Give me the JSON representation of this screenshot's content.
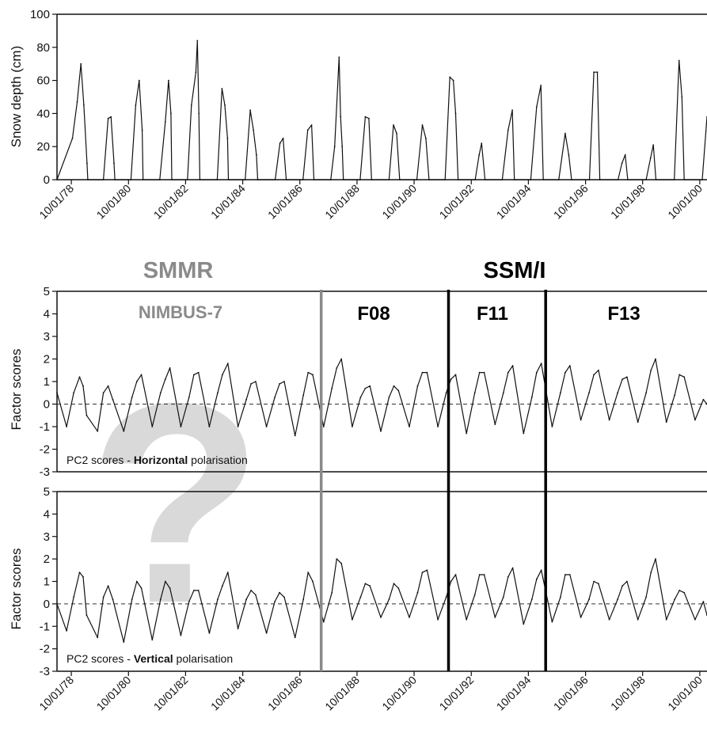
{
  "colors": {
    "line": "#111111",
    "smmr": "#8a8a8a",
    "ssmi": "#000000",
    "question_mark": "#d9d9d9"
  },
  "chart_data": [
    {
      "type": "line",
      "ylabel": "Snow depth (cm)",
      "ylim": [
        0,
        100
      ],
      "yticks": [
        0,
        20,
        40,
        60,
        80,
        100
      ],
      "x_ticks": [
        "10/01/78",
        "10/01/80",
        "10/01/82",
        "10/01/84",
        "10/01/86",
        "10/01/88",
        "10/01/90",
        "10/01/92",
        "10/01/94",
        "10/01/96",
        "10/01/98",
        "10/01/00"
      ],
      "xlim": [
        "1978-04-01",
        "2001-01-01"
      ],
      "series": [
        {
          "x": [
            "1978-04-01",
            "1978-10-15",
            "1978-12-15",
            "1979-02-01",
            "1979-03-10",
            "1979-04-20",
            "1979-04-30",
            "1979-11-15",
            "1980-01-15",
            "1980-02-20",
            "1980-03-30",
            "1980-04-10",
            "1980-11-01",
            "1981-01-01",
            "1981-02-15",
            "1981-03-25",
            "1981-04-05",
            "1981-11-05",
            "1982-01-15",
            "1982-02-25",
            "1982-03-28",
            "1982-04-08",
            "1982-10-25",
            "1982-12-15",
            "1983-02-10",
            "1983-03-01",
            "1983-03-20",
            "1983-04-01",
            "1983-11-10",
            "1984-01-10",
            "1984-02-15",
            "1984-03-20",
            "1984-04-01",
            "1984-11-01",
            "1985-01-05",
            "1985-02-15",
            "1985-03-25",
            "1985-04-10",
            "1985-11-20",
            "1986-01-20",
            "1986-03-01",
            "1986-04-10",
            "1986-11-10",
            "1987-01-10",
            "1987-03-01",
            "1987-03-30",
            "1987-11-01",
            "1987-12-20",
            "1988-02-15",
            "1988-03-05",
            "1988-03-25",
            "1988-04-10",
            "1988-11-10",
            "1989-01-15",
            "1989-03-01",
            "1989-04-05",
            "1989-11-15",
            "1990-01-10",
            "1990-02-20",
            "1990-03-30",
            "1990-11-05",
            "1991-01-15",
            "1991-02-28",
            "1991-04-10",
            "1991-11-01",
            "1992-01-01",
            "1992-02-15",
            "1992-03-15",
            "1992-04-15",
            "1992-11-20",
            "1993-01-10",
            "1993-02-10",
            "1993-03-25",
            "1993-11-01",
            "1994-01-15",
            "1994-03-10",
            "1994-04-05",
            "1994-11-01",
            "1995-01-15",
            "1995-03-10",
            "1995-04-10",
            "1995-10-25",
            "1996-01-15",
            "1996-03-01",
            "1996-04-05",
            "1996-11-20",
            "1997-01-15",
            "1997-03-01",
            "1997-04-01",
            "1997-11-20",
            "1998-01-10",
            "1998-02-20",
            "1998-03-25",
            "1998-11-15",
            "1999-01-10",
            "1999-02-15",
            "1999-03-20",
            "1999-11-10",
            "2000-01-10",
            "2000-02-15",
            "2000-03-15",
            "2000-11-01",
            "2001-01-01"
          ],
          "y": [
            0,
            25,
            47,
            70,
            45,
            10,
            0,
            0,
            37,
            38,
            10,
            0,
            0,
            45,
            60,
            30,
            0,
            0,
            35,
            60,
            40,
            0,
            0,
            45,
            65,
            84,
            40,
            0,
            0,
            55,
            45,
            25,
            0,
            0,
            42,
            30,
            15,
            0,
            0,
            22,
            25,
            0,
            0,
            30,
            33,
            0,
            0,
            20,
            74,
            38,
            20,
            0,
            0,
            38,
            37,
            0,
            0,
            33,
            28,
            0,
            0,
            33,
            25,
            0,
            0,
            62,
            60,
            40,
            0,
            0,
            15,
            22,
            0,
            0,
            30,
            42,
            0,
            0,
            44,
            57,
            0,
            0,
            28,
            15,
            0,
            0,
            65,
            65,
            0,
            0,
            10,
            15,
            0,
            0,
            13,
            21,
            0,
            0,
            72,
            50,
            0,
            0,
            38
          ]
        }
      ]
    },
    {
      "type": "line",
      "ylabel": "Factor scores",
      "annotation_prefix": "PC2 scores - ",
      "annotation_bold": "Horizontal",
      "annotation_suffix": " polarisation",
      "ylim": [
        -3,
        5
      ],
      "yticks": [
        -3,
        -2,
        -1,
        0,
        1,
        2,
        3,
        4,
        5
      ],
      "zero_line": 0,
      "series": [
        {
          "x": [
            "1978-04-01",
            "1978-08-01",
            "1978-11-01",
            "1979-01-15",
            "1979-03-01",
            "1979-04-15",
            "1979-09-01",
            "1979-11-15",
            "1980-01-15",
            "1980-03-15",
            "1980-08-01",
            "1980-11-15",
            "1981-01-15",
            "1981-03-15",
            "1981-08-01",
            "1981-11-15",
            "1982-01-15",
            "1982-03-15",
            "1982-08-01",
            "1982-11-15",
            "1983-01-15",
            "1983-03-15",
            "1983-08-01",
            "1983-11-15",
            "1984-01-15",
            "1984-03-25",
            "1984-08-01",
            "1984-11-15",
            "1985-01-15",
            "1985-03-15",
            "1985-08-01",
            "1985-11-15",
            "1986-01-15",
            "1986-03-15",
            "1986-08-01",
            "1986-11-15",
            "1987-01-15",
            "1987-03-15",
            "1987-08-01",
            "1987-11-15",
            "1988-01-15",
            "1988-03-15",
            "1988-08-01",
            "1988-11-15",
            "1989-01-15",
            "1989-03-15",
            "1989-08-01",
            "1989-11-15",
            "1990-01-15",
            "1990-03-15",
            "1990-08-01",
            "1990-11-15",
            "1991-01-15",
            "1991-03-15",
            "1991-08-01",
            "1991-11-15",
            "1992-01-15",
            "1992-03-15",
            "1992-08-01",
            "1992-11-15",
            "1993-01-15",
            "1993-03-15",
            "1993-08-01",
            "1993-11-15",
            "1994-01-15",
            "1994-03-15",
            "1994-08-01",
            "1994-11-15",
            "1995-01-15",
            "1995-03-15",
            "1995-08-01",
            "1995-11-15",
            "1996-01-15",
            "1996-03-15",
            "1996-08-01",
            "1996-11-15",
            "1997-01-15",
            "1997-03-15",
            "1997-08-01",
            "1997-11-15",
            "1998-01-15",
            "1998-03-15",
            "1998-08-01",
            "1998-11-15",
            "1999-01-15",
            "1999-03-15",
            "1999-08-01",
            "1999-11-15",
            "2000-01-15",
            "2000-03-15",
            "2000-08-01",
            "2000-11-15",
            "2001-01-01"
          ],
          "y": [
            0.5,
            -1.0,
            0.5,
            1.2,
            0.8,
            -0.5,
            -1.2,
            0.5,
            0.8,
            0.2,
            -1.2,
            0.3,
            1.0,
            1.3,
            -1.0,
            0.5,
            1.1,
            1.6,
            -1.0,
            0.3,
            1.3,
            1.4,
            -1.0,
            0.5,
            1.3,
            1.8,
            -1.0,
            0.2,
            0.9,
            1.0,
            -1.0,
            0.3,
            0.9,
            1.0,
            -1.4,
            0.4,
            1.4,
            1.3,
            -1.0,
            0.7,
            1.6,
            2.0,
            -1.0,
            0.3,
            0.7,
            0.8,
            -1.2,
            0.3,
            0.8,
            0.6,
            -1.0,
            0.8,
            1.4,
            1.4,
            -1.0,
            0.5,
            1.1,
            1.3,
            -1.3,
            0.5,
            1.4,
            1.4,
            -0.9,
            0.5,
            1.4,
            1.7,
            -1.3,
            0.3,
            1.4,
            1.8,
            -1.0,
            0.5,
            1.4,
            1.7,
            -0.7,
            0.5,
            1.3,
            1.5,
            -0.7,
            0.5,
            1.1,
            1.2,
            -0.8,
            0.5,
            1.5,
            2.0,
            -0.8,
            0.4,
            1.3,
            1.2,
            -0.7,
            0.2,
            0.0
          ]
        }
      ]
    },
    {
      "type": "line",
      "ylabel": "Factor scores",
      "annotation_prefix": "PC2 scores - ",
      "annotation_bold": "Vertical",
      "annotation_suffix": " polarisation",
      "ylim": [
        -3,
        5
      ],
      "yticks": [
        -3,
        -2,
        -1,
        0,
        1,
        2,
        3,
        4,
        5
      ],
      "zero_line": 0,
      "x_ticks": [
        "10/01/78",
        "10/01/80",
        "10/01/82",
        "10/01/84",
        "10/01/86",
        "10/01/88",
        "10/01/90",
        "10/01/92",
        "10/01/94",
        "10/01/96",
        "10/01/98",
        "10/01/00"
      ],
      "xlim": [
        "1978-04-01",
        "2001-01-01"
      ],
      "series": [
        {
          "x": [
            "1978-04-01",
            "1978-08-01",
            "1978-11-01",
            "1979-01-15",
            "1979-03-01",
            "1979-04-15",
            "1979-09-01",
            "1979-11-15",
            "1980-01-15",
            "1980-03-15",
            "1980-08-01",
            "1980-11-15",
            "1981-01-15",
            "1981-03-15",
            "1981-08-01",
            "1981-11-15",
            "1982-01-15",
            "1982-03-15",
            "1982-08-01",
            "1982-11-15",
            "1983-01-15",
            "1983-03-15",
            "1983-08-01",
            "1983-11-15",
            "1984-01-15",
            "1984-03-25",
            "1984-08-01",
            "1984-11-15",
            "1985-01-15",
            "1985-03-15",
            "1985-08-01",
            "1985-11-15",
            "1986-01-15",
            "1986-03-15",
            "1986-08-01",
            "1986-11-15",
            "1987-01-15",
            "1987-03-15",
            "1987-08-01",
            "1987-11-15",
            "1988-01-15",
            "1988-03-15",
            "1988-08-01",
            "1988-11-15",
            "1989-01-15",
            "1989-03-15",
            "1989-08-01",
            "1989-11-15",
            "1990-01-15",
            "1990-03-15",
            "1990-08-01",
            "1990-11-15",
            "1991-01-15",
            "1991-03-15",
            "1991-08-01",
            "1991-11-15",
            "1992-01-15",
            "1992-03-15",
            "1992-08-01",
            "1992-11-15",
            "1993-01-15",
            "1993-03-15",
            "1993-08-01",
            "1993-11-15",
            "1994-01-15",
            "1994-03-15",
            "1994-08-01",
            "1994-11-15",
            "1995-01-15",
            "1995-03-15",
            "1995-08-01",
            "1995-11-15",
            "1996-01-15",
            "1996-03-15",
            "1996-08-01",
            "1996-11-15",
            "1997-01-15",
            "1997-03-15",
            "1997-08-01",
            "1997-11-15",
            "1998-01-15",
            "1998-03-15",
            "1998-08-01",
            "1998-11-15",
            "1999-01-15",
            "1999-03-15",
            "1999-08-01",
            "1999-11-15",
            "2000-01-15",
            "2000-03-15",
            "2000-08-01",
            "2000-11-15",
            "2001-01-01"
          ],
          "y": [
            0.0,
            -1.2,
            0.3,
            1.4,
            1.2,
            -0.5,
            -1.5,
            0.3,
            0.8,
            0.2,
            -1.7,
            0.2,
            1.0,
            0.7,
            -1.6,
            0.2,
            1.0,
            0.7,
            -1.4,
            0.1,
            0.6,
            0.6,
            -1.3,
            0.2,
            0.8,
            1.4,
            -1.1,
            0.2,
            0.6,
            0.4,
            -1.3,
            0.1,
            0.5,
            0.3,
            -1.5,
            0.2,
            1.4,
            1.0,
            -0.8,
            0.5,
            2.0,
            1.8,
            -0.7,
            0.3,
            0.9,
            0.8,
            -0.6,
            0.2,
            0.9,
            0.7,
            -0.6,
            0.5,
            1.4,
            1.5,
            -0.7,
            0.3,
            1.0,
            1.3,
            -0.7,
            0.4,
            1.3,
            1.3,
            -0.6,
            0.3,
            1.2,
            1.6,
            -0.9,
            0.2,
            1.1,
            1.5,
            -0.8,
            0.3,
            1.3,
            1.3,
            -0.6,
            0.2,
            1.0,
            0.9,
            -0.7,
            0.2,
            0.8,
            1.0,
            -0.7,
            0.3,
            1.4,
            2.0,
            -0.7,
            0.2,
            0.6,
            0.5,
            -0.7,
            0.1,
            -0.5
          ]
        }
      ]
    }
  ],
  "sensor_labels": {
    "smmr": "SMMR",
    "ssmi": "SSM/I"
  },
  "platforms": [
    {
      "label": "NIMBUS-7",
      "sensor": "smmr"
    },
    {
      "label": "F08",
      "sensor": "ssmi"
    },
    {
      "label": "F11",
      "sensor": "ssmi"
    },
    {
      "label": "F13",
      "sensor": "ssmi"
    }
  ],
  "platform_boundaries": [
    {
      "date": "1987-07-01",
      "sensor": "smmr"
    },
    {
      "date": "1991-12-15",
      "sensor": "ssmi"
    },
    {
      "date": "1995-05-10",
      "sensor": "ssmi"
    }
  ],
  "question_mark": "?"
}
